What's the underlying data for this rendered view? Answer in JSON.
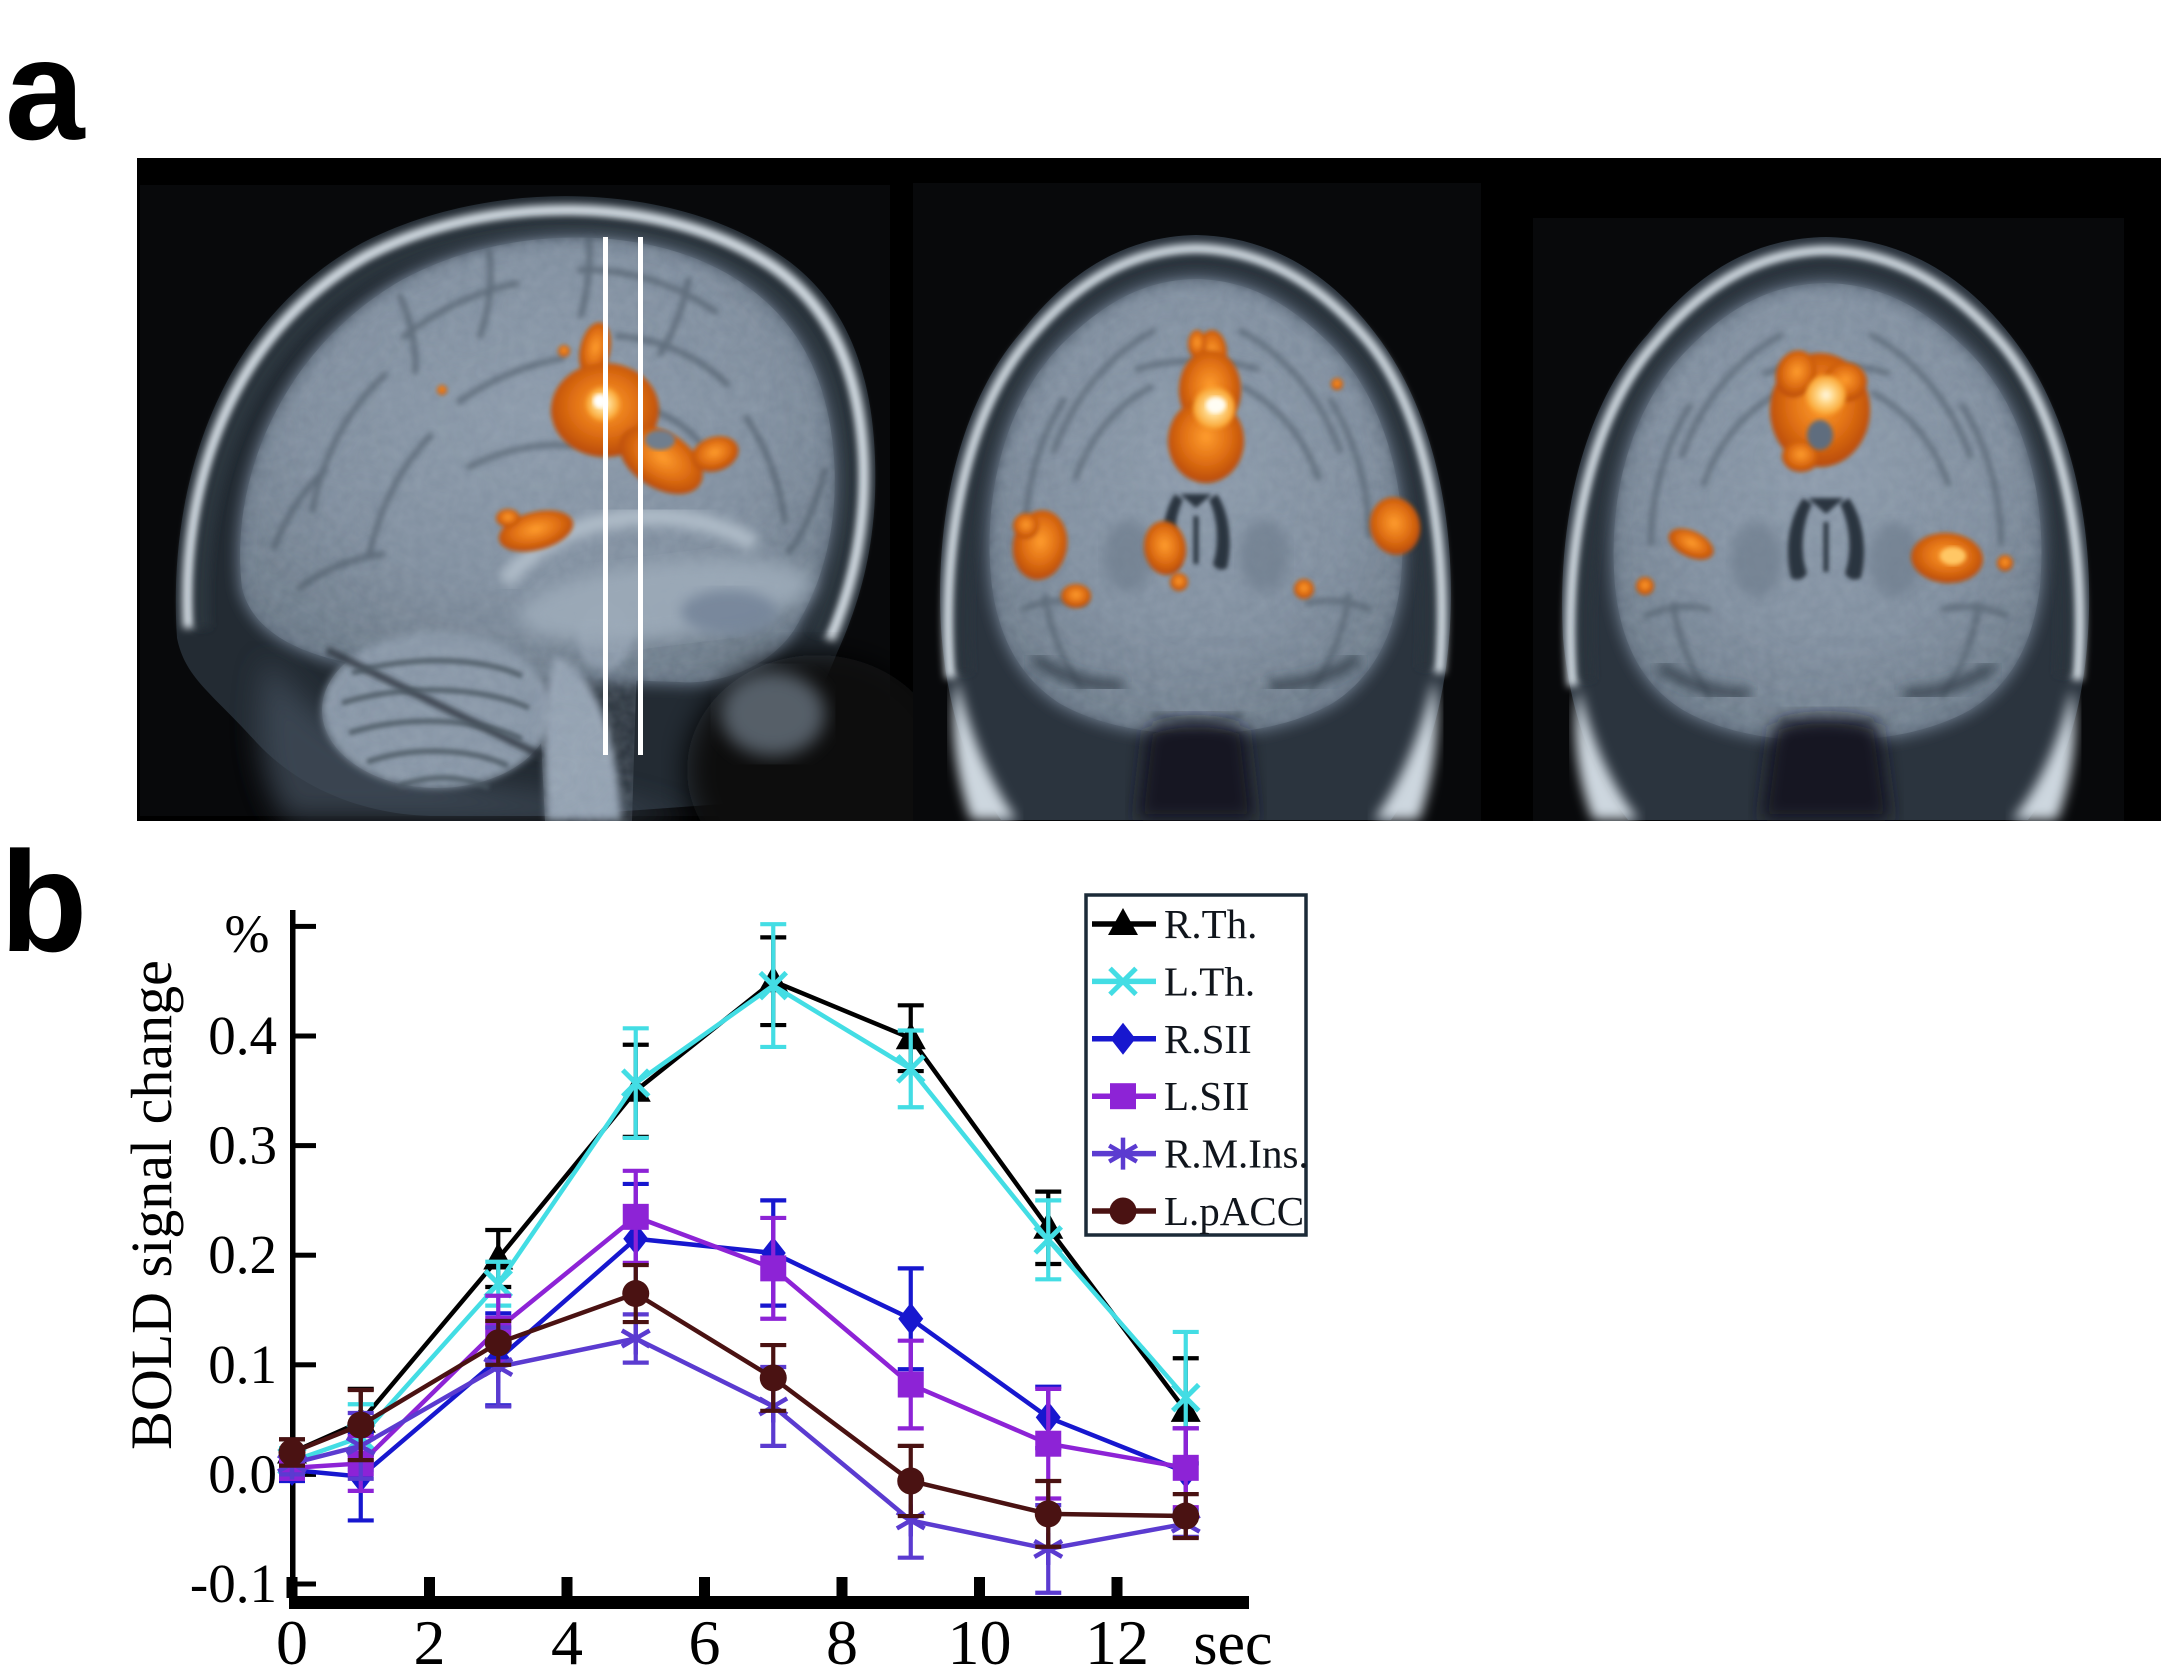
{
  "figure": {
    "panel_a_label": "a",
    "panel_b_label": "b",
    "background_color": "#ffffff"
  },
  "brain_panel": {
    "background_color": "#000000",
    "activation_color": "#e07818",
    "hotspot_color": "#fff3cf",
    "slice_line_color": "#ffffff",
    "slices": [
      {
        "name": "sagittal-slice",
        "overlays": [
          "cingulate-activation",
          "midbrain-activation"
        ],
        "slice_markers": 2
      },
      {
        "name": "coronal-slice-anterior",
        "overlays": [
          "medial-frontal-activation",
          "left-lateral-activation",
          "caudate-activation",
          "right-lateral-activation"
        ],
        "slice_markers": 0
      },
      {
        "name": "coronal-slice-posterior",
        "overlays": [
          "cingulate-ring-activation",
          "left-lateral-activation",
          "right-lateral-activation"
        ],
        "slice_markers": 0
      }
    ]
  },
  "chart_data": {
    "type": "line",
    "title": "",
    "xlabel": "sec",
    "ylabel": "BOLD signal change",
    "y_unit_label": "%",
    "x": [
      0,
      1,
      3,
      5,
      7,
      9,
      11,
      13
    ],
    "xticks": [
      0,
      2,
      4,
      6,
      8,
      10,
      12
    ],
    "yticks": [
      "-0.1",
      "0.0",
      "0.1",
      "0.2",
      "0.3",
      "0.4"
    ],
    "xlim": [
      0,
      14
    ],
    "ylim": [
      -0.1,
      0.52
    ],
    "grid": false,
    "legend_position": "upper right",
    "series": [
      {
        "name": "R.Th.",
        "color": "#000000",
        "marker": "triangle",
        "values": [
          0.02,
          0.048,
          0.197,
          0.35,
          0.45,
          0.398,
          0.225,
          0.058
        ],
        "errors": [
          0.012,
          0.03,
          0.026,
          0.042,
          0.04,
          0.03,
          0.033,
          0.048
        ]
      },
      {
        "name": "L.Th.",
        "color": "#43dde4",
        "marker": "x",
        "values": [
          0.012,
          0.034,
          0.174,
          0.357,
          0.446,
          0.37,
          0.214,
          0.07
        ],
        "errors": [
          0.012,
          0.03,
          0.02,
          0.05,
          0.056,
          0.035,
          0.036,
          0.06
        ]
      },
      {
        "name": "R.SII",
        "color": "#1717cf",
        "marker": "diamond",
        "values": [
          0.004,
          -0.002,
          0.105,
          0.215,
          0.202,
          0.142,
          0.052,
          0.002
        ],
        "errors": [
          0.01,
          0.04,
          0.042,
          0.05,
          0.048,
          0.046,
          0.028,
          0.04
        ]
      },
      {
        "name": "L.SII",
        "color": "#8d23d6",
        "marker": "square",
        "values": [
          0.006,
          0.01,
          0.133,
          0.235,
          0.188,
          0.082,
          0.028,
          0.006
        ],
        "errors": [
          0.01,
          0.025,
          0.03,
          0.042,
          0.046,
          0.04,
          0.05,
          0.036
        ]
      },
      {
        "name": "R.M.Ins.",
        "color": "#5b3bd0",
        "marker": "asterisk",
        "values": [
          0.01,
          0.026,
          0.098,
          0.124,
          0.062,
          -0.042,
          -0.068,
          -0.045
        ],
        "errors": [
          0.01,
          0.03,
          0.036,
          0.022,
          0.036,
          0.034,
          0.04,
          0.012
        ]
      },
      {
        "name": "L.pACC",
        "color": "#4a1212",
        "marker": "circle",
        "values": [
          0.02,
          0.045,
          0.12,
          0.165,
          0.088,
          -0.006,
          -0.036,
          -0.038
        ],
        "errors": [
          0.012,
          0.032,
          0.02,
          0.026,
          0.03,
          0.032,
          0.03,
          0.02
        ]
      }
    ]
  }
}
